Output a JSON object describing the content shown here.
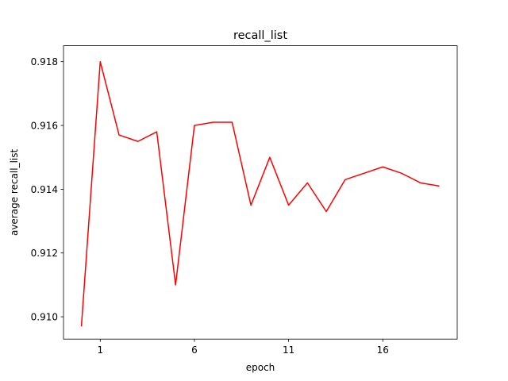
{
  "chart_data": {
    "type": "line",
    "title": "recall_list",
    "xlabel": "epoch",
    "ylabel": "average recall_list",
    "xlim": [
      -0.95,
      19.95
    ],
    "ylim": [
      0.9093,
      0.9185
    ],
    "xticks": [
      1,
      6,
      11,
      16
    ],
    "yticks": [
      0.91,
      0.912,
      0.914,
      0.916,
      0.918
    ],
    "ytick_labels": [
      "0.910",
      "0.912",
      "0.914",
      "0.916",
      "0.918"
    ],
    "grid": false,
    "line_color": "#ff0000",
    "series": [
      {
        "x": [
          0,
          1,
          2,
          3,
          4,
          5,
          6,
          7,
          8,
          9,
          10,
          11,
          12,
          13,
          14,
          15,
          16,
          17,
          18,
          19
        ],
        "values": [
          0.9097,
          0.918,
          0.9157,
          0.9155,
          0.9158,
          0.911,
          0.916,
          0.9161,
          0.9161,
          0.9135,
          0.915,
          0.9135,
          0.9142,
          0.9133,
          0.9143,
          0.9145,
          0.9147,
          0.9145,
          0.9142,
          0.9141
        ]
      }
    ]
  }
}
